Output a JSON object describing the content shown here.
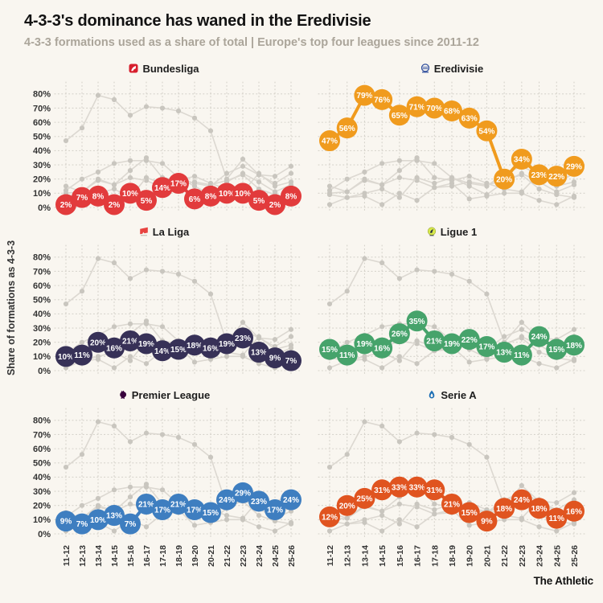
{
  "header": {
    "title": "4-3-3's dominance has waned in the Eredivisie",
    "subtitle": "4-3-3 formations used as a share of total | Europe's top four leagues since 2011-12"
  },
  "footer": {
    "brand": "The Athletic"
  },
  "chart_data": {
    "type": "line",
    "layout": "small-multiples 2x3",
    "title": "4-3-3's dominance has waned in the Eredivisie",
    "subtitle": "4-3-3 formations used as a share of total | Europe's top four leagues since 2011-12",
    "xlabel": "",
    "ylabel": "Share of formations as 4-3-3",
    "x": [
      "11-12",
      "12-13",
      "13-14",
      "14-15",
      "15-16",
      "16-17",
      "17-18",
      "18-19",
      "19-20",
      "20-21",
      "21-22",
      "22-23",
      "23-24",
      "24-25",
      "25-26"
    ],
    "ylim": [
      0,
      85
    ],
    "yticks": [
      "0%",
      "10%",
      "20%",
      "30%",
      "40%",
      "50%",
      "60%",
      "70%",
      "80%"
    ],
    "grid": "dotted both axes",
    "legend_position": "panel titles",
    "background_line_color": "#dcd8d1",
    "background_dot_color": "#c9c6bf",
    "series": [
      {
        "name": "Bundesliga",
        "icon": "bundesliga-logo",
        "color": "#e23b3c",
        "values": [
          2,
          7,
          8,
          2,
          10,
          5,
          14,
          17,
          6,
          8,
          10,
          10,
          5,
          2,
          8
        ]
      },
      {
        "name": "Eredivisie",
        "icon": "eredivisie-logo",
        "color": "#f09b1e",
        "values": [
          47,
          56,
          79,
          76,
          65,
          71,
          70,
          68,
          63,
          54,
          20,
          34,
          23,
          22,
          29
        ]
      },
      {
        "name": "La Liga",
        "icon": "laliga-logo",
        "color": "#373157",
        "values": [
          10,
          11,
          20,
          16,
          21,
          19,
          14,
          15,
          18,
          16,
          19,
          23,
          13,
          9,
          7
        ]
      },
      {
        "name": "Ligue 1",
        "icon": "ligue1-logo",
        "color": "#46a36b",
        "values": [
          15,
          11,
          19,
          16,
          26,
          35,
          21,
          19,
          22,
          17,
          13,
          11,
          24,
          15,
          18
        ]
      },
      {
        "name": "Premier League",
        "icon": "premier-league-logo",
        "color": "#3e7ec0",
        "values": [
          9,
          7,
          10,
          13,
          7,
          21,
          17,
          21,
          17,
          15,
          24,
          29,
          23,
          17,
          24
        ]
      },
      {
        "name": "Serie A",
        "icon": "serie-a-logo",
        "color": "#e05420",
        "values": [
          12,
          20,
          25,
          31,
          33,
          33,
          31,
          21,
          15,
          9,
          18,
          24,
          18,
          11,
          16
        ]
      }
    ],
    "panel_notes": "each panel highlights one league with labeled dots; the other five leagues are drawn as gray background lines; y tick labels only on left-column panels; x tick labels only on bottom-row panels, rotated 90°"
  }
}
